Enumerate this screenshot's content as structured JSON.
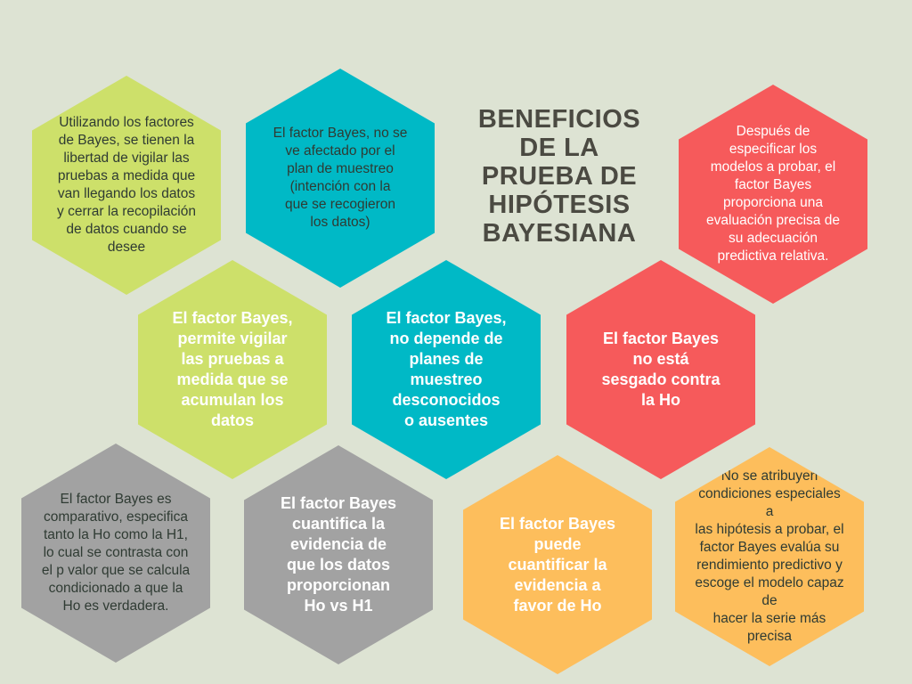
{
  "title": "BENEFICIOS\nDE LA\nPRUEBA DE\nHIPÓTESIS\nBAYESIANA",
  "colors": {
    "background": "#dde3d3",
    "green": "#cde06a",
    "teal": "#00b9c6",
    "red": "#f65a5b",
    "gray": "#a2a2a2",
    "orange": "#fdbe5c",
    "title": "#4b4a42"
  },
  "hexagons": [
    {
      "text": "Utilizando los factores\nde Bayes, se tienen la\nlibertad  de vigilar las\npruebas a medida que\nvan llegando los datos\ny cerrar la recopilación\nde datos cuando se\ndesee",
      "color": "green"
    },
    {
      "text": "El factor Bayes, no se\nve afectado por el\nplan de muestreo\n(intención con la\nque se recogieron\nlos datos)",
      "color": "teal"
    },
    {
      "text": "Después de\nespecificar los\nmodelos a probar, el\nfactor Bayes\nproporciona una\nevaluación precisa de\nsu adecuación\npredictiva relativa.",
      "color": "red"
    },
    {
      "text": "El factor Bayes,\npermite vigilar\nlas pruebas a\nmedida que se\nacumulan los\ndatos",
      "color": "green"
    },
    {
      "text": "El factor Bayes,\nno depende de\nplanes de\nmuestreo\ndesconocidos\no ausentes",
      "color": "teal"
    },
    {
      "text": "El factor Bayes\nno está\nsesgado contra\nla Ho",
      "color": "red"
    },
    {
      "text": "El factor Bayes es\ncomparativo, especifica\ntanto la Ho como la H1,\nlo cual se contrasta con\nel p valor que se calcula\ncondicionado a que la\nHo es verdadera.",
      "color": "gray"
    },
    {
      "text": "El factor Bayes\ncuantifica la\nevidencia de\nque los datos\nproporcionan\nHo vs H1",
      "color": "gray"
    },
    {
      "text": "El factor Bayes\npuede\ncuantificar la\nevidencia a\nfavor de Ho",
      "color": "orange"
    },
    {
      "text": "No se atribuyen\ncondiciones especiales  a\nlas hipótesis a probar, el\nfactor Bayes evalúa su\nrendimiento predictivo y\nescoge el modelo capaz de\nhacer la serie más precisa",
      "color": "orange"
    }
  ]
}
